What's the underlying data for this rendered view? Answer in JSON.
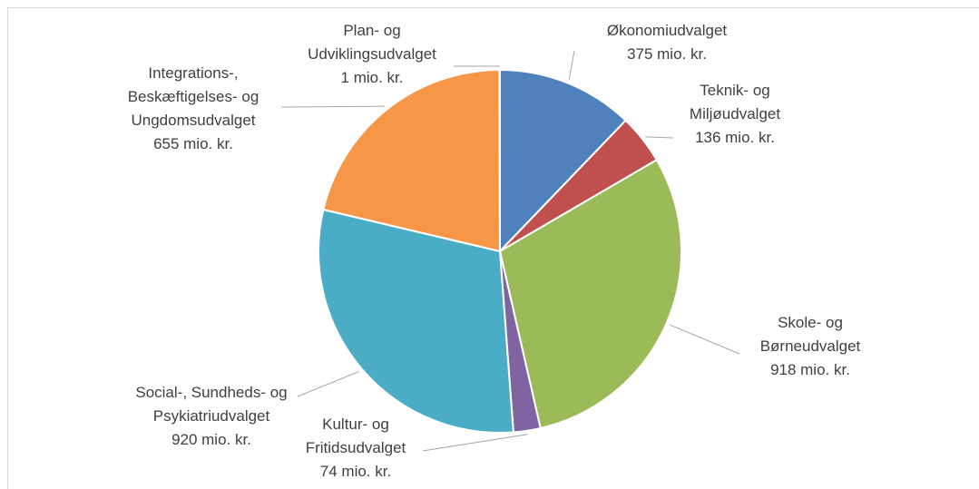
{
  "chart_data": {
    "type": "pie",
    "categories": [
      "Økonomiudvalget",
      "Teknik- og Miljøudvalget",
      "Skole- og Børneudvalget",
      "Kultur- og Fritidsudvalget",
      "Social-, Sundheds- og Psykiatriudvalget",
      "Integrations-, Beskæftigelses- og Ungdomsudvalget",
      "Plan- og Udviklingsudvalget"
    ],
    "values": [
      375,
      136,
      918,
      74,
      920,
      655,
      1
    ],
    "value_labels": [
      "375 mio. kr.",
      "136 mio. kr.",
      "918 mio. kr.",
      "74 mio. kr.",
      "920 mio. kr.",
      "655 mio. kr.",
      "1 mio. kr."
    ],
    "colors": [
      "#4f81bd",
      "#c0504d",
      "#9bbb59",
      "#8064a2",
      "#4bacc6",
      "#f79646",
      "#2c4d75"
    ]
  }
}
